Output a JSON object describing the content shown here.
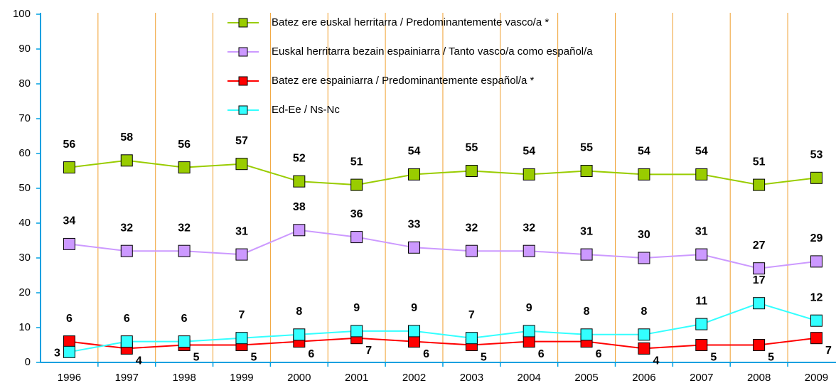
{
  "chart_data": {
    "type": "line",
    "categories": [
      "1996",
      "1997",
      "1998",
      "1999",
      "2000",
      "2001",
      "2002",
      "2003",
      "2004",
      "2005",
      "2006",
      "2007",
      "2008",
      "2009"
    ],
    "series": [
      {
        "name": "Batez ere euskal herritarra / Predominantemente vasco/a *",
        "color": "#99cc00",
        "values": [
          56,
          58,
          56,
          57,
          52,
          51,
          54,
          55,
          54,
          55,
          54,
          54,
          51,
          53
        ]
      },
      {
        "name": "Euskal herritarra bezain espainiarra / Tanto vasco/a como español/a",
        "color": "#cc99ff",
        "values": [
          34,
          32,
          32,
          31,
          38,
          36,
          33,
          32,
          32,
          31,
          30,
          31,
          27,
          29
        ]
      },
      {
        "name": "Batez ere espainiarra / Predominantemente español/a *",
        "color": "#ff0000",
        "values": [
          6,
          4,
          5,
          5,
          6,
          7,
          6,
          5,
          6,
          6,
          4,
          5,
          5,
          7
        ]
      },
      {
        "name": "Ed-Ee / Ns-Nc",
        "color": "#33ffff",
        "values": [
          3,
          6,
          6,
          7,
          8,
          9,
          9,
          7,
          9,
          8,
          8,
          11,
          17,
          12
        ]
      }
    ],
    "ylim": [
      0,
      100
    ],
    "yticks": [
      0,
      10,
      20,
      30,
      40,
      50,
      60,
      70,
      80,
      90,
      100
    ],
    "grid": "vertical-category"
  }
}
